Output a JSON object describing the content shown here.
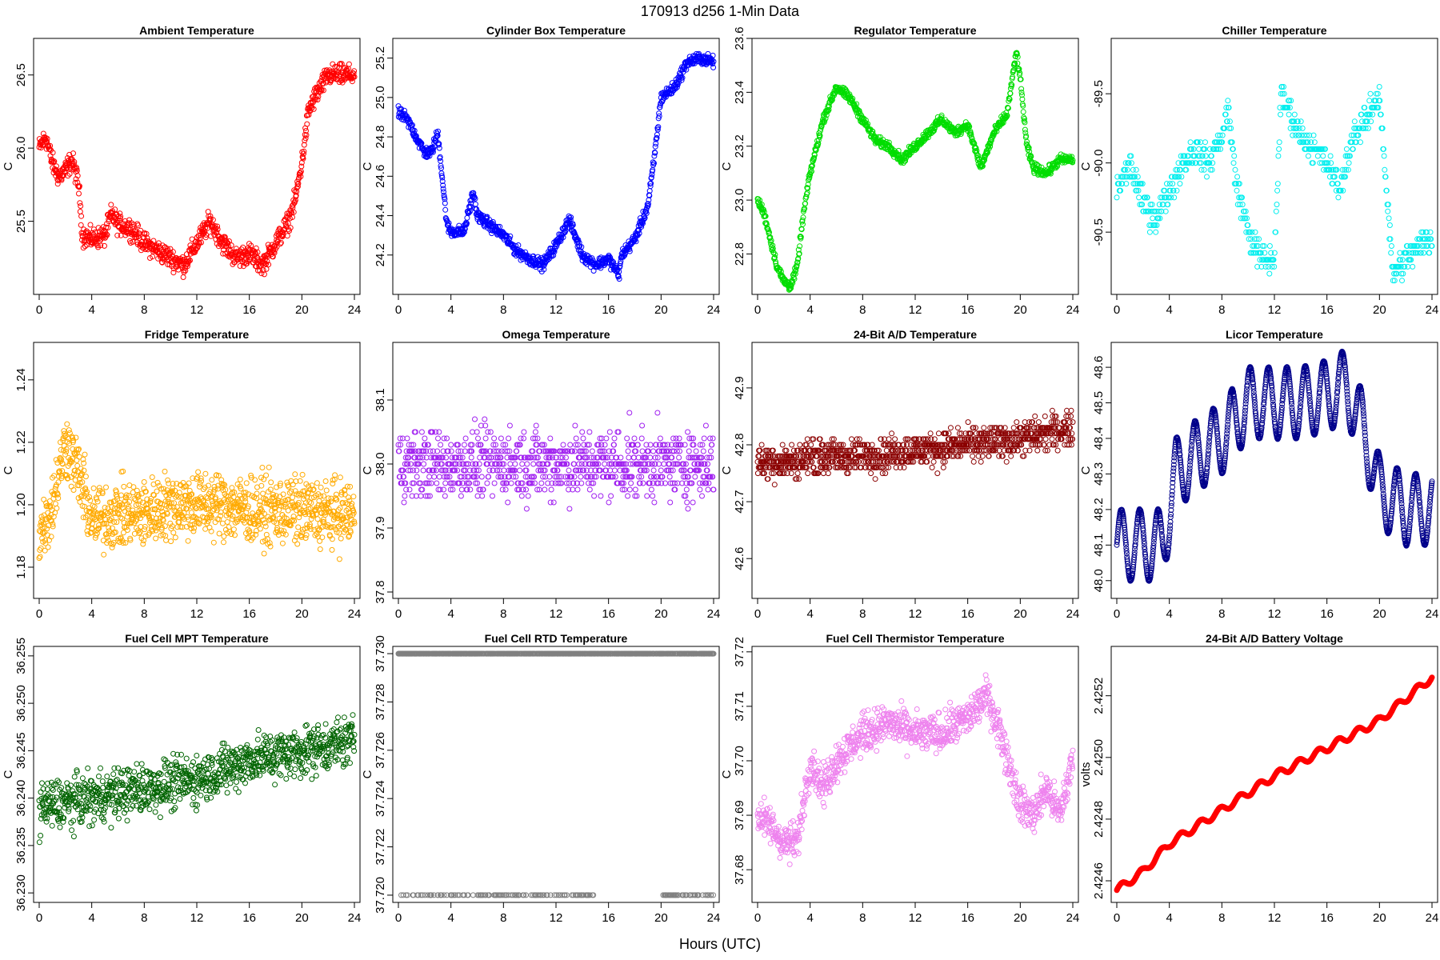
{
  "figure": {
    "suptitle": "170913    d256    1-Min Data",
    "xlabel": "Hours (UTC)"
  },
  "chart_data": [
    {
      "type": "scatter",
      "title": "Ambient Temperature",
      "ylabel": "C",
      "color": "#ff0000",
      "xlim": [
        0,
        24
      ],
      "ylim": [
        25.0,
        26.75
      ],
      "xticks": [
        0,
        4,
        8,
        12,
        16,
        20,
        24
      ],
      "yticks": [
        25.5,
        26.0,
        26.5
      ],
      "ytick_labels": [
        "25.5",
        "26.0",
        "26.5"
      ],
      "profile": [
        [
          0,
          26.0
        ],
        [
          0.5,
          26.08
        ],
        [
          1,
          25.9
        ],
        [
          1.5,
          25.8
        ],
        [
          2,
          25.85
        ],
        [
          2.5,
          25.92
        ],
        [
          3,
          25.75
        ],
        [
          3.3,
          25.4
        ],
        [
          4,
          25.38
        ],
        [
          5,
          25.4
        ],
        [
          5.5,
          25.55
        ],
        [
          6,
          25.48
        ],
        [
          7,
          25.45
        ],
        [
          8,
          25.35
        ],
        [
          9,
          25.3
        ],
        [
          10,
          25.25
        ],
        [
          11,
          25.2
        ],
        [
          12,
          25.35
        ],
        [
          13,
          25.5
        ],
        [
          14,
          25.35
        ],
        [
          15,
          25.25
        ],
        [
          16,
          25.28
        ],
        [
          17,
          25.2
        ],
        [
          18,
          25.35
        ],
        [
          19,
          25.5
        ],
        [
          19.5,
          25.65
        ],
        [
          20,
          25.9
        ],
        [
          20.5,
          26.25
        ],
        [
          21,
          26.35
        ],
        [
          22,
          26.5
        ],
        [
          23,
          26.5
        ],
        [
          24,
          26.5
        ]
      ],
      "noise": 0.12,
      "n": 900
    },
    {
      "type": "scatter",
      "title": "Cylinder Box Temperature",
      "ylabel": "C",
      "color": "#0000ff",
      "xlim": [
        0,
        24
      ],
      "ylim": [
        24.0,
        25.3
      ],
      "xticks": [
        0,
        4,
        8,
        12,
        16,
        20,
        24
      ],
      "yticks": [
        24.2,
        24.4,
        24.6,
        24.8,
        25.0,
        25.2
      ],
      "ytick_labels": [
        "24.2",
        "24.4",
        "24.6",
        "24.8",
        "25.0",
        "25.2"
      ],
      "profile": [
        [
          0,
          24.92
        ],
        [
          0.5,
          24.9
        ],
        [
          1,
          24.85
        ],
        [
          1.5,
          24.78
        ],
        [
          2,
          24.72
        ],
        [
          2.5,
          24.72
        ],
        [
          3,
          24.82
        ],
        [
          3.3,
          24.62
        ],
        [
          3.7,
          24.35
        ],
        [
          4,
          24.32
        ],
        [
          5,
          24.32
        ],
        [
          5.7,
          24.52
        ],
        [
          6,
          24.4
        ],
        [
          7,
          24.35
        ],
        [
          8,
          24.3
        ],
        [
          9,
          24.22
        ],
        [
          10,
          24.18
        ],
        [
          11,
          24.15
        ],
        [
          12,
          24.25
        ],
        [
          13,
          24.38
        ],
        [
          14,
          24.2
        ],
        [
          15,
          24.15
        ],
        [
          16,
          24.18
        ],
        [
          16.8,
          24.1
        ],
        [
          17,
          24.2
        ],
        [
          18,
          24.28
        ],
        [
          19,
          24.45
        ],
        [
          19.5,
          24.7
        ],
        [
          20,
          25.0
        ],
        [
          21,
          25.05
        ],
        [
          22,
          25.18
        ],
        [
          23,
          25.2
        ],
        [
          24,
          25.18
        ]
      ],
      "noise": 0.05,
      "n": 900
    },
    {
      "type": "scatter",
      "title": "Regulator Temperature",
      "ylabel": "C",
      "color": "#00dd00",
      "xlim": [
        0,
        24
      ],
      "ylim": [
        22.65,
        23.6
      ],
      "xticks": [
        0,
        4,
        8,
        12,
        16,
        20,
        24
      ],
      "yticks": [
        22.8,
        23.0,
        23.2,
        23.4,
        23.6
      ],
      "ytick_labels": [
        "22.8",
        "23.0",
        "23.2",
        "23.4",
        "23.6"
      ],
      "profile": [
        [
          0,
          23.0
        ],
        [
          0.5,
          22.95
        ],
        [
          1,
          22.85
        ],
        [
          1.5,
          22.75
        ],
        [
          2,
          22.7
        ],
        [
          2.5,
          22.68
        ],
        [
          3,
          22.75
        ],
        [
          3.5,
          22.95
        ],
        [
          4,
          23.1
        ],
        [
          5,
          23.3
        ],
        [
          6,
          23.42
        ],
        [
          7,
          23.38
        ],
        [
          8,
          23.3
        ],
        [
          9,
          23.22
        ],
        [
          10,
          23.2
        ],
        [
          11,
          23.15
        ],
        [
          12,
          23.2
        ],
        [
          13,
          23.25
        ],
        [
          14,
          23.3
        ],
        [
          15,
          23.25
        ],
        [
          16,
          23.28
        ],
        [
          17,
          23.12
        ],
        [
          18,
          23.25
        ],
        [
          19,
          23.32
        ],
        [
          19.7,
          23.55
        ],
        [
          20,
          23.45
        ],
        [
          20.5,
          23.2
        ],
        [
          21,
          23.12
        ],
        [
          22,
          23.1
        ],
        [
          23,
          23.15
        ],
        [
          24,
          23.15
        ]
      ],
      "noise": 0.03,
      "n": 900
    },
    {
      "type": "scatter",
      "title": "Chiller Temperature",
      "ylabel": "C",
      "color": "#00eeee",
      "xlim": [
        0,
        24
      ],
      "ylim": [
        -90.95,
        -89.1
      ],
      "xticks": [
        0,
        4,
        8,
        12,
        16,
        20,
        24
      ],
      "yticks": [
        -90.5,
        -90.0,
        -89.5
      ],
      "ytick_labels": [
        "-90.5",
        "-90.0",
        "-89.5"
      ],
      "profile": [
        [
          0,
          -90.2
        ],
        [
          1,
          -90.0
        ],
        [
          2,
          -90.3
        ],
        [
          3,
          -90.4
        ],
        [
          4,
          -90.2
        ],
        [
          5,
          -90.0
        ],
        [
          6,
          -89.9
        ],
        [
          7,
          -90.0
        ],
        [
          8,
          -89.8
        ],
        [
          8.5,
          -89.6
        ],
        [
          9,
          -90.1
        ],
        [
          10,
          -90.5
        ],
        [
          11,
          -90.7
        ],
        [
          12,
          -90.7
        ],
        [
          12.5,
          -89.5
        ],
        [
          13,
          -89.6
        ],
        [
          14,
          -89.8
        ],
        [
          15,
          -89.9
        ],
        [
          16,
          -90.0
        ],
        [
          17,
          -90.2
        ],
        [
          18,
          -89.8
        ],
        [
          19,
          -89.7
        ],
        [
          20,
          -89.5
        ],
        [
          21,
          -90.8
        ],
        [
          22,
          -90.7
        ],
        [
          23,
          -90.6
        ],
        [
          24,
          -90.55
        ]
      ],
      "noise": 0.18,
      "n": 600,
      "quantize": 0.05
    },
    {
      "type": "scatter",
      "title": "Fridge Temperature",
      "ylabel": "C",
      "color": "#ffaa00",
      "xlim": [
        0,
        24
      ],
      "ylim": [
        1.17,
        1.252
      ],
      "xticks": [
        0,
        4,
        8,
        12,
        16,
        20,
        24
      ],
      "yticks": [
        1.18,
        1.2,
        1.22,
        1.24
      ],
      "ytick_labels": [
        "1.18",
        "1.20",
        "1.22",
        "1.24"
      ],
      "profile": [
        [
          0,
          1.19
        ],
        [
          1,
          1.2
        ],
        [
          2,
          1.22
        ],
        [
          3,
          1.21
        ],
        [
          4,
          1.195
        ],
        [
          6,
          1.197
        ],
        [
          8,
          1.197
        ],
        [
          10,
          1.2
        ],
        [
          12,
          1.2
        ],
        [
          14,
          1.2
        ],
        [
          16,
          1.198
        ],
        [
          18,
          1.198
        ],
        [
          20,
          1.198
        ],
        [
          22,
          1.197
        ],
        [
          24,
          1.197
        ]
      ],
      "noise": 0.018,
      "n": 1100
    },
    {
      "type": "scatter",
      "title": "Omega Temperature",
      "ylabel": "C",
      "color": "#a020f0",
      "xlim": [
        0,
        24
      ],
      "ylim": [
        37.79,
        38.19
      ],
      "xticks": [
        0,
        4,
        8,
        12,
        16,
        20,
        24
      ],
      "yticks": [
        37.8,
        37.9,
        38.0,
        38.1
      ],
      "ytick_labels": [
        "37.8",
        "37.9",
        "38.0",
        "38.1"
      ],
      "profile": [
        [
          0,
          38.0
        ],
        [
          24,
          38.0
        ]
      ],
      "noise": 0.09,
      "n": 900,
      "quantize": 0.01
    },
    {
      "type": "scatter",
      "title": "24-Bit A/D Temperature",
      "ylabel": "C",
      "color": "#8b0000",
      "xlim": [
        0,
        24
      ],
      "ylim": [
        42.53,
        42.98
      ],
      "xticks": [
        0,
        4,
        8,
        12,
        16,
        20,
        24
      ],
      "yticks": [
        42.6,
        42.7,
        42.8,
        42.9
      ],
      "ytick_labels": [
        "42.6",
        "42.7",
        "42.8",
        "42.9"
      ],
      "profile": [
        [
          0,
          42.77
        ],
        [
          3,
          42.77
        ],
        [
          4,
          42.78
        ],
        [
          8,
          42.78
        ],
        [
          12,
          42.79
        ],
        [
          16,
          42.8
        ],
        [
          20,
          42.81
        ],
        [
          24,
          42.83
        ]
      ],
      "noise": 0.05,
      "n": 1000,
      "quantize": 0.01
    },
    {
      "type": "line-scatter",
      "title": "Licor Temperature",
      "ylabel": "C",
      "color": "#00008b",
      "xlim": [
        0,
        24
      ],
      "ylim": [
        47.95,
        48.67
      ],
      "xticks": [
        0,
        4,
        8,
        12,
        16,
        20,
        24
      ],
      "yticks": [
        48.0,
        48.1,
        48.2,
        48.3,
        48.4,
        48.5,
        48.6
      ],
      "ytick_labels": [
        "48.0",
        "48.1",
        "48.2",
        "48.3",
        "48.4",
        "48.5",
        "48.6"
      ],
      "profile": [
        [
          0,
          48.1
        ],
        [
          1.5,
          48.1
        ],
        [
          3.5,
          48.1
        ],
        [
          4.5,
          48.3
        ],
        [
          6,
          48.35
        ],
        [
          8,
          48.4
        ],
        [
          10,
          48.5
        ],
        [
          12,
          48.5
        ],
        [
          14,
          48.5
        ],
        [
          16,
          48.52
        ],
        [
          17.5,
          48.55
        ],
        [
          19,
          48.4
        ],
        [
          20,
          48.25
        ],
        [
          22,
          48.2
        ],
        [
          24,
          48.2
        ]
      ],
      "osc_amp": 0.1,
      "osc_period": 1.4,
      "noise": 0.003,
      "n": 1400
    },
    {
      "type": "scatter",
      "title": "Fuel Cell MPT Temperature",
      "ylabel": "C",
      "color": "#006400",
      "xlim": [
        0,
        24
      ],
      "ylim": [
        36.229,
        36.256
      ],
      "xticks": [
        0,
        4,
        8,
        12,
        16,
        20,
        24
      ],
      "yticks": [
        36.23,
        36.235,
        36.24,
        36.245,
        36.25,
        36.255
      ],
      "ytick_labels": [
        "36.230",
        "36.235",
        "36.240",
        "36.245",
        "36.250",
        "36.255"
      ],
      "profile": [
        [
          0,
          36.239
        ],
        [
          4,
          36.24
        ],
        [
          8,
          36.241
        ],
        [
          12,
          36.242
        ],
        [
          16,
          36.244
        ],
        [
          20,
          36.245
        ],
        [
          24,
          36.246
        ]
      ],
      "noise": 0.0045,
      "n": 1000
    },
    {
      "type": "scatter",
      "title": "Fuel Cell RTD Temperature",
      "ylabel": "C",
      "color": "#808080",
      "xlim": [
        0,
        24
      ],
      "ylim": [
        37.7197,
        37.7303
      ],
      "xticks": [
        0,
        4,
        8,
        12,
        16,
        20,
        24
      ],
      "yticks": [
        37.72,
        37.722,
        37.724,
        37.726,
        37.728,
        37.73
      ],
      "ytick_labels": [
        "37.720",
        "37.722",
        "37.724",
        "37.726",
        "37.728",
        "37.730"
      ],
      "two_level": [
        37.72,
        37.73
      ],
      "n": 900
    },
    {
      "type": "scatter",
      "title": "Fuel Cell Thermistor Temperature",
      "ylabel": "C",
      "color": "#ee82ee",
      "xlim": [
        0,
        24
      ],
      "ylim": [
        37.674,
        37.721
      ],
      "xticks": [
        0,
        4,
        8,
        12,
        16,
        20,
        24
      ],
      "yticks": [
        37.68,
        37.69,
        37.7,
        37.71,
        37.72
      ],
      "ytick_labels": [
        "37.68",
        "37.69",
        "37.70",
        "37.71",
        "37.72"
      ],
      "profile": [
        [
          0,
          37.69
        ],
        [
          1,
          37.688
        ],
        [
          2,
          37.685
        ],
        [
          3,
          37.685
        ],
        [
          4,
          37.7
        ],
        [
          5,
          37.695
        ],
        [
          6,
          37.7
        ],
        [
          8,
          37.705
        ],
        [
          10,
          37.707
        ],
        [
          12,
          37.705
        ],
        [
          14,
          37.705
        ],
        [
          16,
          37.708
        ],
        [
          17.5,
          37.712
        ],
        [
          18.5,
          37.705
        ],
        [
          20,
          37.692
        ],
        [
          21,
          37.69
        ],
        [
          22,
          37.695
        ],
        [
          23,
          37.69
        ],
        [
          24,
          37.7
        ]
      ],
      "noise": 0.006,
      "n": 1000
    },
    {
      "type": "line-scatter",
      "title": "24-Bit A/D Battery Voltage",
      "ylabel": "volts",
      "color": "#ff0000",
      "xlim": [
        0,
        24
      ],
      "ylim": [
        2.42453,
        2.42536
      ],
      "xticks": [
        0,
        4,
        8,
        12,
        16,
        20,
        24
      ],
      "yticks": [
        2.4246,
        2.4248,
        2.425,
        2.4252
      ],
      "ytick_labels": [
        "2.4246",
        "2.4248",
        "2.4250",
        "2.4252"
      ],
      "profile": [
        [
          0,
          2.42457
        ],
        [
          2,
          2.42463
        ],
        [
          4,
          2.42472
        ],
        [
          8,
          2.42483
        ],
        [
          12,
          2.42494
        ],
        [
          16,
          2.42503
        ],
        [
          20,
          2.42512
        ],
        [
          24,
          2.42526
        ]
      ],
      "osc_amp": 1.2e-05,
      "osc_period": 1.5,
      "noise": 1e-06,
      "n": 1400
    }
  ]
}
